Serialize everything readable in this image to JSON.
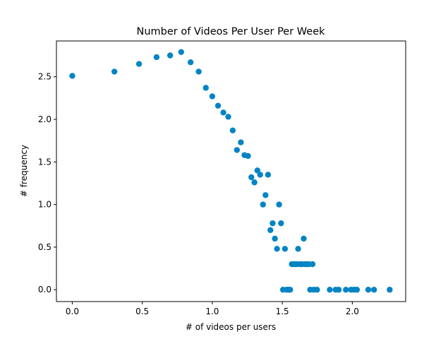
{
  "chart_data": {
    "type": "scatter",
    "title": "Number of Videos Per User Per Week",
    "xlabel": "# of videos per users",
    "ylabel": "# frequency",
    "xlim": [
      -0.113,
      2.381
    ],
    "ylim": [
      -0.139,
      2.92
    ],
    "xticks": [
      0.0,
      0.5,
      1.0,
      1.5,
      2.0
    ],
    "xtick_labels": [
      "0.0",
      "0.5",
      "1.0",
      "1.5",
      "2.0"
    ],
    "yticks": [
      0.0,
      0.5,
      1.0,
      1.5,
      2.0,
      2.5
    ],
    "ytick_labels": [
      "0.0",
      "0.5",
      "1.0",
      "1.5",
      "2.0",
      "2.5"
    ],
    "grid": false,
    "marker_color": "#0484c4",
    "points": [
      [
        0.0,
        2.51
      ],
      [
        0.301,
        2.56
      ],
      [
        0.477,
        2.65
      ],
      [
        0.602,
        2.73
      ],
      [
        0.699,
        2.75
      ],
      [
        0.778,
        2.79
      ],
      [
        0.845,
        2.67
      ],
      [
        0.903,
        2.56
      ],
      [
        0.954,
        2.37
      ],
      [
        1.0,
        2.27
      ],
      [
        1.041,
        2.16
      ],
      [
        1.079,
        2.08
      ],
      [
        1.114,
        2.03
      ],
      [
        1.146,
        1.87
      ],
      [
        1.176,
        1.64
      ],
      [
        1.204,
        1.73
      ],
      [
        1.23,
        1.58
      ],
      [
        1.255,
        1.57
      ],
      [
        1.279,
        1.32
      ],
      [
        1.301,
        1.26
      ],
      [
        1.322,
        1.4
      ],
      [
        1.342,
        1.35
      ],
      [
        1.362,
        1.0
      ],
      [
        1.38,
        1.11
      ],
      [
        1.398,
        1.35
      ],
      [
        1.415,
        0.7
      ],
      [
        1.431,
        0.78
      ],
      [
        1.447,
        0.6
      ],
      [
        1.462,
        0.48
      ],
      [
        1.477,
        1.0
      ],
      [
        1.491,
        0.78
      ],
      [
        1.505,
        0.0
      ],
      [
        1.519,
        0.48
      ],
      [
        1.531,
        0.0
      ],
      [
        1.544,
        0.0
      ],
      [
        1.556,
        0.0
      ],
      [
        1.568,
        0.3
      ],
      [
        1.58,
        0.3
      ],
      [
        1.591,
        0.3
      ],
      [
        1.602,
        0.3
      ],
      [
        1.613,
        0.48
      ],
      [
        1.623,
        0.3
      ],
      [
        1.633,
        0.3
      ],
      [
        1.643,
        0.3
      ],
      [
        1.653,
        0.6
      ],
      [
        1.663,
        0.3
      ],
      [
        1.672,
        0.3
      ],
      [
        1.681,
        0.3
      ],
      [
        1.69,
        0.3
      ],
      [
        1.699,
        0.0
      ],
      [
        1.716,
        0.3
      ],
      [
        1.724,
        0.0
      ],
      [
        1.748,
        0.0
      ],
      [
        1.839,
        0.0
      ],
      [
        1.881,
        0.0
      ],
      [
        1.903,
        0.0
      ],
      [
        1.954,
        0.0
      ],
      [
        1.991,
        0.0
      ],
      [
        2.013,
        0.0
      ],
      [
        2.033,
        0.0
      ],
      [
        2.114,
        0.0
      ],
      [
        2.155,
        0.0
      ],
      [
        2.267,
        0.0
      ]
    ]
  }
}
